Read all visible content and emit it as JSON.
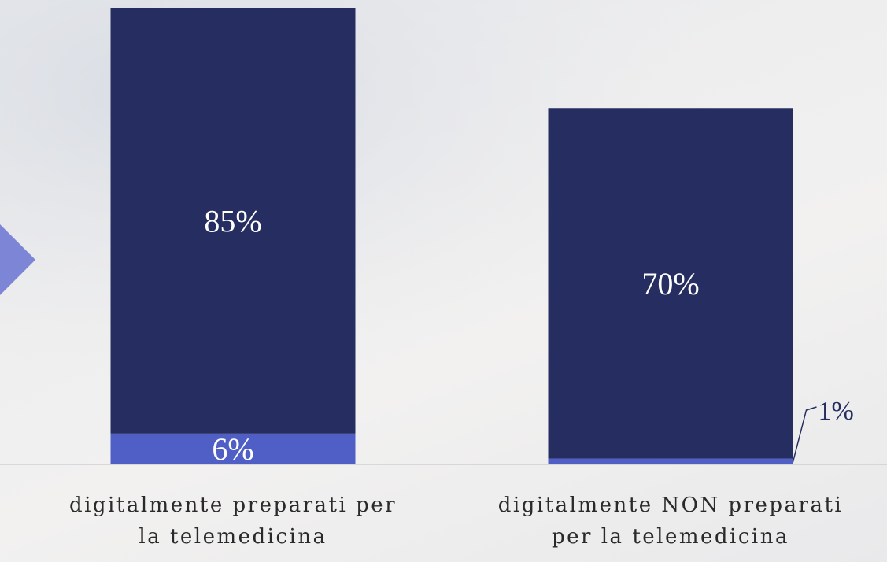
{
  "chart_data": {
    "type": "stacked-bar",
    "categories": [
      "digitalmente preparati per\nla telemedicina",
      "digitalmente NON preparati\nper la telemedicina"
    ],
    "series": [
      {
        "color": "#4f5fc5",
        "values": [
          6,
          1
        ],
        "value_labels": [
          "6%",
          "1%"
        ]
      },
      {
        "color": "#262d60",
        "values": [
          85,
          70
        ],
        "value_labels": [
          "85%",
          "70%"
        ]
      }
    ]
  }
}
